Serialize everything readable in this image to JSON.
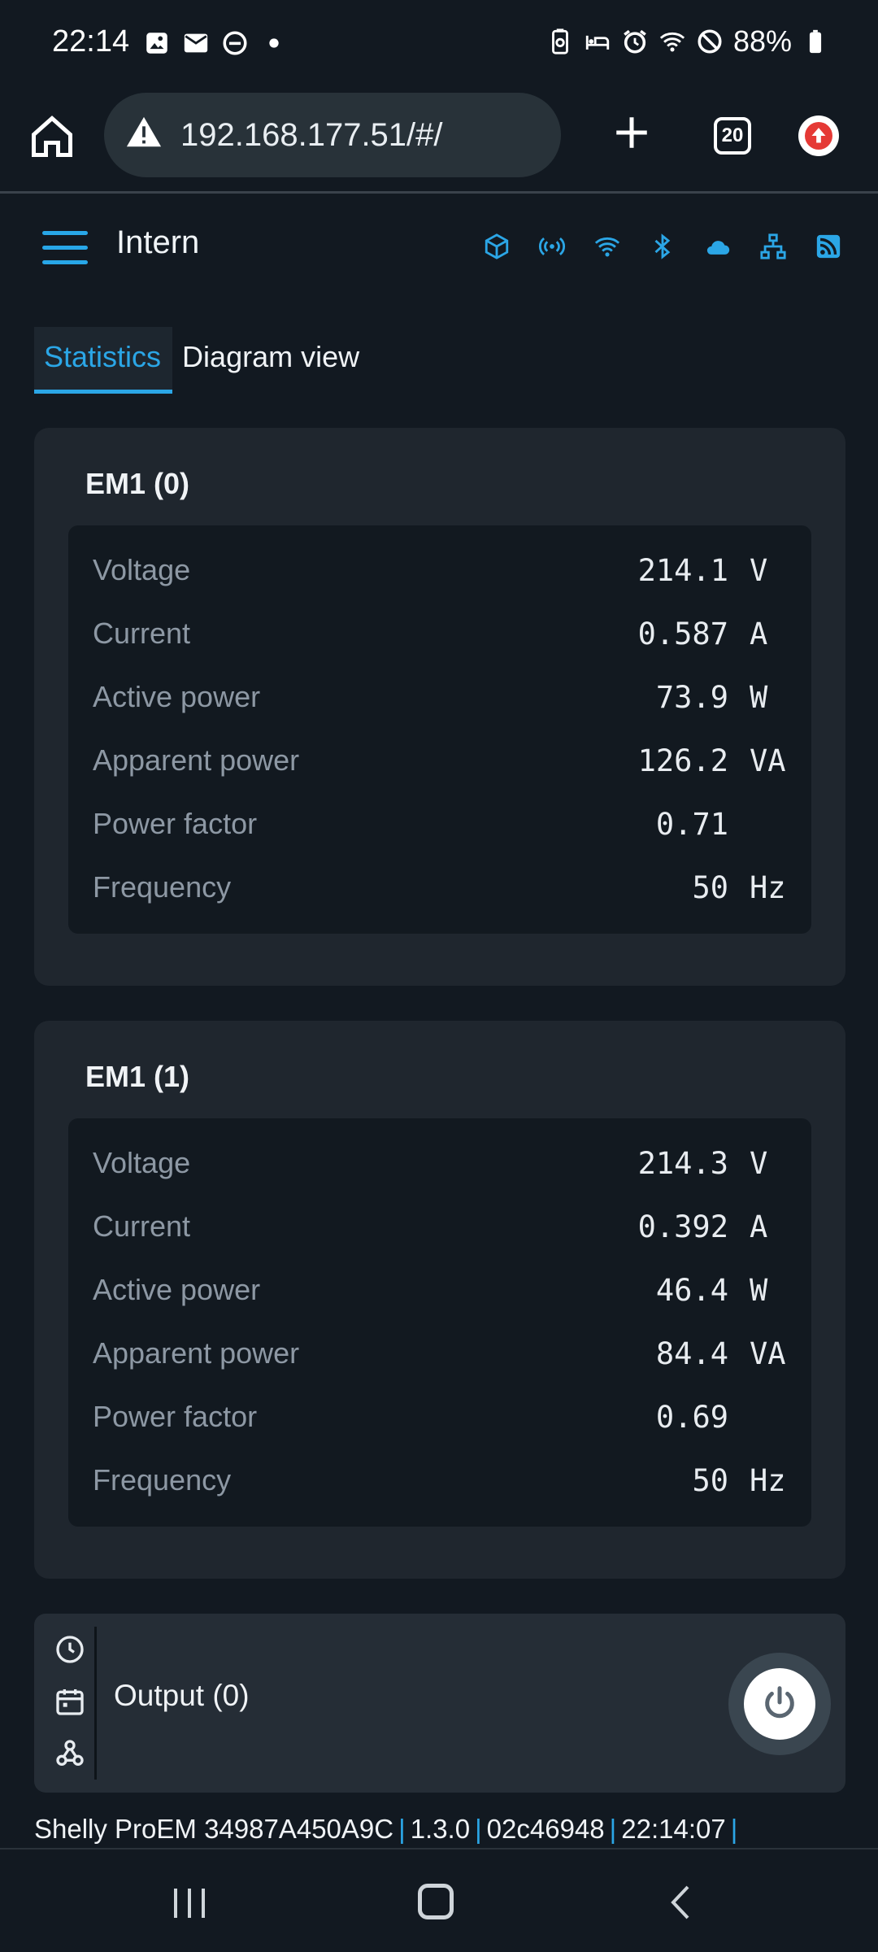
{
  "status_bar": {
    "time": "22:14",
    "battery": "88%",
    "left_icons": [
      "image-icon",
      "mail-icon",
      "dnd-icon",
      "dot-icon"
    ],
    "right_icons": [
      "battery-saver-icon",
      "sleep-icon",
      "alarm-icon",
      "wifi-icon",
      "blocked-icon",
      "battery-icon"
    ]
  },
  "browser": {
    "url": "192.168.177.51/#/",
    "tab_count": "20"
  },
  "app": {
    "title": "Intern",
    "header_icons": [
      "cube-icon",
      "broadcast-icon",
      "wifi-icon",
      "bluetooth-icon",
      "cloud-icon",
      "network-icon",
      "rss-icon"
    ],
    "accent_color": "#2ba6e6"
  },
  "tabs": [
    {
      "label": "Statistics",
      "active": true
    },
    {
      "label": "Diagram view",
      "active": false
    }
  ],
  "meters": [
    {
      "title": "EM1 (0)",
      "rows": [
        {
          "label": "Voltage",
          "value": "214.1",
          "unit": "V"
        },
        {
          "label": "Current",
          "value": "0.587",
          "unit": "A"
        },
        {
          "label": "Active power",
          "value": "73.9",
          "unit": "W"
        },
        {
          "label": "Apparent power",
          "value": "126.2",
          "unit": "VA"
        },
        {
          "label": "Power factor",
          "value": "0.71",
          "unit": ""
        },
        {
          "label": "Frequency",
          "value": "50",
          "unit": "Hz"
        }
      ]
    },
    {
      "title": "EM1 (1)",
      "rows": [
        {
          "label": "Voltage",
          "value": "214.3",
          "unit": "V"
        },
        {
          "label": "Current",
          "value": "0.392",
          "unit": "A"
        },
        {
          "label": "Active power",
          "value": "46.4",
          "unit": "W"
        },
        {
          "label": "Apparent power",
          "value": "84.4",
          "unit": "VA"
        },
        {
          "label": "Power factor",
          "value": "0.69",
          "unit": ""
        },
        {
          "label": "Frequency",
          "value": "50",
          "unit": "Hz"
        }
      ]
    }
  ],
  "output": {
    "label": "Output (0)",
    "icons": [
      "clock-icon",
      "calendar-icon",
      "webhook-icon"
    ]
  },
  "footer": {
    "device": "Shelly ProEM 34987A450A9C",
    "firmware": "1.3.0",
    "build": "02c46948",
    "time": "22:14:07"
  }
}
